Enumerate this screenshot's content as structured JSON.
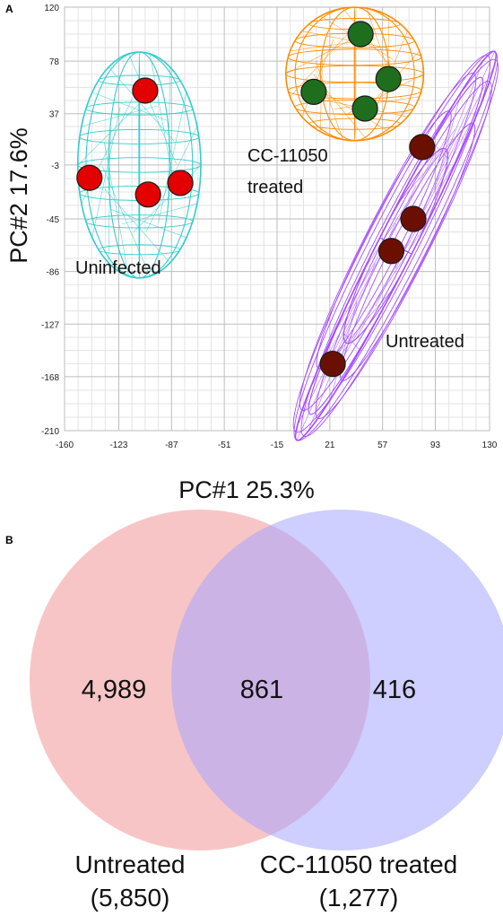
{
  "chart_data": [
    {
      "type": "scatter",
      "panel_label": "A",
      "xlabel": "PC#1 25.3%",
      "ylabel": "PC#2 17.6%",
      "xlim": [
        -160,
        130
      ],
      "ylim": [
        -210,
        120
      ],
      "x_ticks": [
        -160,
        -123,
        -87,
        -51,
        -15,
        21,
        57,
        93,
        130
      ],
      "y_ticks": [
        120,
        78,
        37,
        -3,
        -45,
        -86,
        -127,
        -168,
        -210
      ],
      "grid": true,
      "series": [
        {
          "name": "Uninfected",
          "color": "#e30000",
          "ellipse_color": "#33cccc",
          "points": [
            {
              "x": -105,
              "y": 55
            },
            {
              "x": -143,
              "y": -13
            },
            {
              "x": -103,
              "y": -26
            },
            {
              "x": -81,
              "y": -17
            }
          ],
          "ellipse": {
            "cx": -109,
            "cy": -3,
            "rx": 42,
            "ry": 88,
            "angle": 0
          }
        },
        {
          "name": "CC-11050 treated",
          "color": "#1e6e1e",
          "ellipse_color": "#ff8c00",
          "points": [
            {
              "x": 42,
              "y": 99
            },
            {
              "x": 10,
              "y": 54
            },
            {
              "x": 61,
              "y": 64
            },
            {
              "x": 45,
              "y": 41
            }
          ],
          "ellipse": {
            "cx": 38,
            "cy": 68,
            "rx": 47,
            "ry": 52,
            "angle": 0
          }
        },
        {
          "name": "Untreated",
          "color": "#6b1000",
          "ellipse_color": "#a64dff",
          "points": [
            {
              "x": 84,
              "y": 11
            },
            {
              "x": 78,
              "y": -45
            },
            {
              "x": 63,
              "y": -70
            },
            {
              "x": 23,
              "y": -158
            }
          ],
          "ellipse": {
            "cx": 66,
            "cy": -66,
            "rx": 159,
            "ry": 13,
            "angle": -63
          }
        }
      ],
      "annotations": [
        "Uninfected",
        "CC-11050 treated",
        "Untreated"
      ]
    },
    {
      "type": "venn",
      "panel_label": "B",
      "sets": [
        {
          "name": "Untreated",
          "total_label": "(5,850)",
          "only_label": "4,989",
          "color": "#f4a6a8"
        },
        {
          "name": "CC-11050 treated",
          "total_label": "(1,277)",
          "only_label": "416",
          "color": "#a6a6ff"
        }
      ],
      "intersection_label": "861"
    }
  ]
}
